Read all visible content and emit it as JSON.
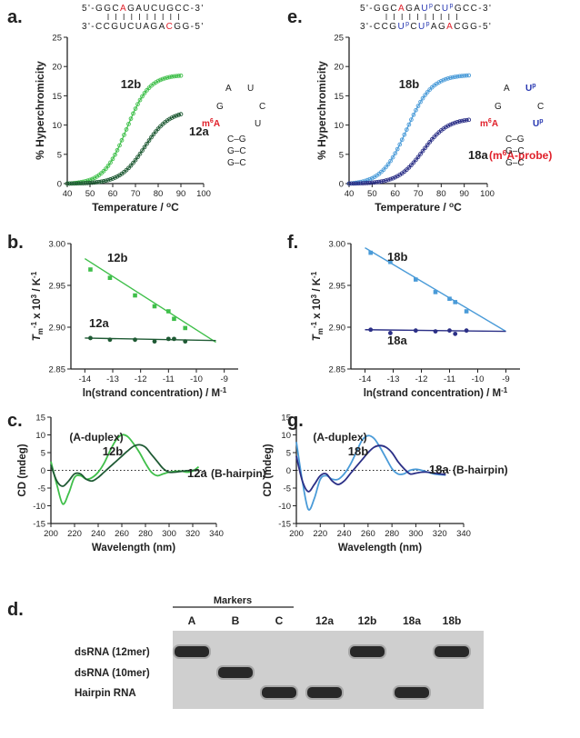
{
  "panels": {
    "a": "a.",
    "b": "b.",
    "c": "c.",
    "d": "d.",
    "e": "e.",
    "f": "f.",
    "g": "g."
  },
  "colors": {
    "light_green": "#3fbf4a",
    "dark_green": "#1f5a34",
    "light_blue": "#4a9bd8",
    "dark_blue": "#2b2f86",
    "modified": "#e0202a",
    "uridine_probe": "#2535b0",
    "axis": "#222222"
  },
  "sequences_a": {
    "top": [
      "5'-G",
      "G",
      "C",
      "A",
      "G",
      "A",
      "U",
      "C",
      "U",
      "G",
      "C",
      "C-3'"
    ],
    "bottom": [
      "3'-C",
      "C",
      "G",
      "U",
      "C",
      "U",
      "A",
      "G",
      "A",
      "C",
      "G",
      "G-5'"
    ],
    "top_mod_index": 3,
    "bottom_mod_index": 9
  },
  "sequences_e": {
    "top": [
      "5'-G",
      "G",
      "C",
      "A",
      "G",
      "A",
      "Up",
      "C",
      "Up",
      "G",
      "C",
      "C-3'"
    ],
    "bottom": [
      "3'-C",
      "C",
      "G",
      "Up",
      "C",
      "Up",
      "A",
      "G",
      "A",
      "C",
      "G",
      "G-5'"
    ],
    "top_mod_index": 3,
    "bottom_mod_index": 8
  },
  "hairpin_a": {
    "A": "A",
    "U1": "U",
    "G": "G",
    "C": "C",
    "m6A": "m6A",
    "U2": "U",
    "stem": [
      "C–G",
      "G–C",
      "G–C"
    ]
  },
  "hairpin_e": {
    "A": "A",
    "U1": "Up",
    "G": "G",
    "C": "C",
    "m6A": "m6A",
    "U2": "Up",
    "stem": [
      "C–G",
      "G–C",
      "G–C"
    ]
  },
  "chart_data": [
    {
      "panel": "a",
      "type": "line",
      "xlabel": "Temperature / oC",
      "ylabel": "% Hyperchromicity",
      "xlim": [
        40,
        100
      ],
      "ylim": [
        0,
        25
      ],
      "xticks": [
        "40",
        "50",
        "60",
        "70",
        "80",
        "90",
        "100"
      ],
      "yticks": [
        "0",
        "5",
        "10",
        "15",
        "20",
        "25"
      ],
      "series": [
        {
          "name": "12b",
          "midpoint": 66,
          "width": 6,
          "plateau": 18.7,
          "x_range": [
            40,
            90
          ]
        },
        {
          "name": "12a",
          "midpoint": 74,
          "width": 6.5,
          "plateau": 12.5,
          "x_range": [
            40,
            90
          ]
        }
      ]
    },
    {
      "panel": "b",
      "type": "scatter",
      "xlabel": "ln(strand concentration) / M-1",
      "ylabel": "Tm-1 x 103 / K-1",
      "xlim": [
        -14.5,
        -8.5
      ],
      "ylim": [
        2.85,
        3.0
      ],
      "xticks": [
        "-14",
        "-13",
        "-12",
        "-11",
        "-10",
        "-9"
      ],
      "yticks": [
        "2.85",
        "2.90",
        "2.95",
        "3.00"
      ],
      "series": [
        {
          "name": "12b",
          "x": [
            -13.8,
            -13.1,
            -12.2,
            -11.5,
            -11.0,
            -10.8,
            -10.4
          ],
          "y": [
            2.969,
            2.959,
            2.938,
            2.925,
            2.919,
            2.91,
            2.899
          ],
          "fit": [
            [
              -14.0,
              2.982
            ],
            [
              -9.3,
              2.882
            ]
          ]
        },
        {
          "name": "12a",
          "x": [
            -13.8,
            -13.1,
            -12.2,
            -11.5,
            -11.0,
            -10.8,
            -10.4
          ],
          "y": [
            2.887,
            2.885,
            2.885,
            2.883,
            2.886,
            2.886,
            2.883
          ],
          "fit": [
            [
              -14.0,
              2.887
            ],
            [
              -9.3,
              2.884
            ]
          ]
        }
      ]
    },
    {
      "panel": "c",
      "type": "line",
      "xlabel": "Wavelength (nm)",
      "ylabel": "CD (mdeg)",
      "xlim": [
        200,
        340
      ],
      "ylim": [
        -15,
        15
      ],
      "xticks": [
        "200",
        "220",
        "240",
        "260",
        "280",
        "300",
        "320",
        "340"
      ],
      "yticks": [
        "-15",
        "-10",
        "-5",
        "0",
        "5",
        "10",
        "15"
      ],
      "annotations": [
        "(A-duplex)",
        "(B-hairpin)"
      ],
      "series": [
        {
          "name": "12b",
          "x": [
            200,
            205,
            210,
            215,
            220,
            225,
            230,
            235,
            240,
            245,
            250,
            255,
            260,
            265,
            270,
            275,
            280,
            285,
            290,
            295,
            300,
            305,
            310,
            315,
            320,
            325
          ],
          "y": [
            2.5,
            -4.0,
            -9.5,
            -6.5,
            -2.0,
            -1.5,
            -2.5,
            -2.0,
            -0.5,
            2.0,
            5.5,
            8.5,
            10.0,
            9.5,
            7.5,
            5.0,
            2.0,
            -0.5,
            -1.5,
            -1.0,
            -0.5,
            -0.3,
            -0.2,
            -0.5,
            -0.2,
            1.0
          ]
        },
        {
          "name": "12a",
          "x": [
            200,
            205,
            210,
            215,
            220,
            225,
            230,
            235,
            240,
            245,
            250,
            255,
            260,
            265,
            270,
            275,
            280,
            285,
            290,
            295,
            300,
            305,
            310,
            315,
            320,
            325
          ],
          "y": [
            1.5,
            -3.0,
            -4.5,
            -3.0,
            -1.0,
            -1.0,
            -2.5,
            -3.0,
            -2.0,
            -0.5,
            1.0,
            2.5,
            4.0,
            5.5,
            6.8,
            7.2,
            6.5,
            4.5,
            2.5,
            0.5,
            -0.5,
            -0.5,
            -0.3,
            -0.1,
            0.0,
            0.0
          ]
        }
      ]
    },
    {
      "panel": "e",
      "type": "line",
      "xlabel": "Temperature / oC",
      "ylabel": "% Hyperchromicity",
      "xlim": [
        40,
        100
      ],
      "ylim": [
        0,
        25
      ],
      "xticks": [
        "40",
        "50",
        "60",
        "70",
        "80",
        "90",
        "100"
      ],
      "yticks": [
        "0",
        "5",
        "10",
        "15",
        "20",
        "25"
      ],
      "annotations": [
        "(m6A-probe)"
      ],
      "series": [
        {
          "name": "18b",
          "midpoint": 65,
          "width": 6.5,
          "plateau": 18.8,
          "x_range": [
            40,
            92
          ]
        },
        {
          "name": "18a",
          "midpoint": 72,
          "width": 6.5,
          "plateau": 11.2,
          "x_range": [
            40,
            92
          ]
        }
      ]
    },
    {
      "panel": "f",
      "type": "scatter",
      "xlabel": "ln(strand concentration) / M-1",
      "ylabel": "Tm-1 x 103 / K-1",
      "xlim": [
        -14.5,
        -8.5
      ],
      "ylim": [
        2.85,
        3.0
      ],
      "xticks": [
        "-14",
        "-13",
        "-12",
        "-11",
        "-10",
        "-9"
      ],
      "yticks": [
        "2.85",
        "2.90",
        "2.95",
        "3.00"
      ],
      "series": [
        {
          "name": "18b",
          "x": [
            -13.8,
            -13.1,
            -12.2,
            -11.5,
            -11.0,
            -10.8,
            -10.4
          ],
          "y": [
            2.989,
            2.978,
            2.957,
            2.942,
            2.934,
            2.93,
            2.919
          ],
          "fit": [
            [
              -14.0,
              2.995
            ],
            [
              -9.0,
              2.895
            ]
          ]
        },
        {
          "name": "18a",
          "x": [
            -13.8,
            -13.1,
            -12.2,
            -11.5,
            -11.0,
            -10.8,
            -10.4
          ],
          "y": [
            2.897,
            2.893,
            2.896,
            2.895,
            2.896,
            2.892,
            2.896
          ],
          "fit": [
            [
              -14.0,
              2.897
            ],
            [
              -9.0,
              2.895
            ]
          ]
        }
      ]
    },
    {
      "panel": "g",
      "type": "line",
      "xlabel": "Wavelength (nm)",
      "ylabel": "CD (mdeg)",
      "xlim": [
        200,
        340
      ],
      "ylim": [
        -15,
        15
      ],
      "xticks": [
        "200",
        "220",
        "240",
        "260",
        "280",
        "300",
        "320",
        "340"
      ],
      "yticks": [
        "-15",
        "-10",
        "-5",
        "0",
        "5",
        "10",
        "15"
      ],
      "annotations": [
        "(A-duplex)",
        "(B-hairpin)"
      ],
      "series": [
        {
          "name": "18b",
          "x": [
            200,
            205,
            210,
            215,
            220,
            225,
            230,
            235,
            240,
            245,
            250,
            255,
            260,
            265,
            270,
            275,
            280,
            285,
            290,
            295,
            300,
            305,
            310,
            315,
            320,
            325
          ],
          "y": [
            8.0,
            -3.0,
            -11.0,
            -8.0,
            -2.5,
            -1.5,
            -2.5,
            -2.5,
            -1.0,
            1.5,
            5.0,
            8.5,
            9.8,
            9.0,
            6.5,
            3.5,
            0.5,
            -1.0,
            -1.0,
            0.0,
            0.3,
            0.0,
            -0.5,
            -1.0,
            -1.2,
            -1.3
          ]
        },
        {
          "name": "18a",
          "x": [
            200,
            205,
            210,
            215,
            220,
            225,
            230,
            235,
            240,
            245,
            250,
            255,
            260,
            265,
            270,
            275,
            280,
            285,
            290,
            295,
            300,
            305,
            310,
            315,
            320,
            325
          ],
          "y": [
            4.0,
            -3.0,
            -6.0,
            -4.0,
            -1.5,
            -1.0,
            -3.0,
            -4.0,
            -3.0,
            -1.0,
            1.0,
            3.0,
            5.0,
            6.5,
            7.0,
            6.5,
            5.0,
            2.5,
            0.5,
            -1.0,
            -0.8,
            -0.5,
            -0.5,
            -0.8,
            -1.0,
            -1.2
          ]
        }
      ]
    }
  ],
  "gel": {
    "markers_label": "Markers",
    "lanes": [
      "A",
      "B",
      "C",
      "12a",
      "12b",
      "18a",
      "18b"
    ],
    "row_labels": [
      "dsRNA (12mer)",
      "dsRNA (10mer)",
      "Hairpin RNA"
    ],
    "band_rows": [
      0,
      1,
      2,
      2,
      0,
      2,
      0
    ]
  }
}
